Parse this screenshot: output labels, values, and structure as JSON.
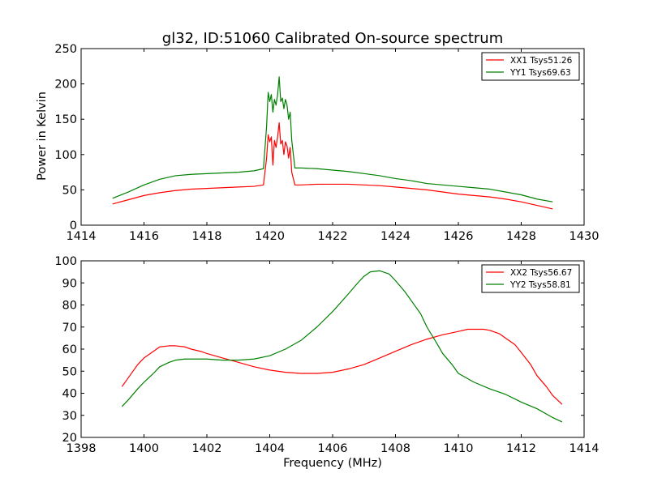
{
  "chart_data": [
    {
      "type": "line",
      "title": "gl32, ID:51060 Calibrated On-source spectrum",
      "xlabel": "",
      "ylabel": "Power in Kelvin",
      "xlim": [
        1414,
        1430
      ],
      "ylim": [
        0,
        250
      ],
      "xticks": [
        "1414",
        "1416",
        "1418",
        "1420",
        "1422",
        "1424",
        "1426",
        "1428",
        "1430"
      ],
      "yticks": [
        "0",
        "50",
        "100",
        "150",
        "200",
        "250"
      ],
      "grid": false,
      "legend_position": "top-right",
      "series": [
        {
          "name": "XX1 Tsys51.26",
          "color": "#ff0000",
          "x": [
            1415.0,
            1415.5,
            1416.0,
            1416.5,
            1417.0,
            1417.5,
            1418.0,
            1418.5,
            1419.0,
            1419.5,
            1419.8,
            1419.9,
            1419.95,
            1420.0,
            1420.05,
            1420.1,
            1420.15,
            1420.2,
            1420.25,
            1420.3,
            1420.35,
            1420.4,
            1420.45,
            1420.5,
            1420.55,
            1420.6,
            1420.65,
            1420.7,
            1420.8,
            1421.0,
            1421.5,
            1422.0,
            1422.5,
            1423.0,
            1423.5,
            1424.0,
            1424.5,
            1425.0,
            1425.5,
            1426.0,
            1426.5,
            1427.0,
            1427.5,
            1428.0,
            1428.5,
            1429.0
          ],
          "y": [
            30,
            36,
            42,
            46,
            49,
            51,
            52,
            53,
            54,
            55,
            57,
            95,
            128,
            118,
            125,
            85,
            120,
            110,
            125,
            145,
            115,
            120,
            100,
            118,
            112,
            95,
            110,
            75,
            57,
            57,
            58,
            58,
            58,
            57,
            56,
            54,
            52,
            50,
            47,
            44,
            42,
            40,
            37,
            33,
            28,
            23
          ]
        },
        {
          "name": "YY1 Tsys69.63",
          "color": "#008000",
          "x": [
            1415.0,
            1415.5,
            1416.0,
            1416.5,
            1417.0,
            1417.5,
            1418.0,
            1418.5,
            1419.0,
            1419.5,
            1419.8,
            1419.9,
            1419.95,
            1420.0,
            1420.05,
            1420.1,
            1420.15,
            1420.2,
            1420.25,
            1420.3,
            1420.35,
            1420.4,
            1420.45,
            1420.5,
            1420.55,
            1420.6,
            1420.65,
            1420.7,
            1420.8,
            1421.0,
            1421.5,
            1422.0,
            1422.5,
            1423.0,
            1423.5,
            1424.0,
            1424.5,
            1425.0,
            1425.5,
            1426.0,
            1426.5,
            1427.0,
            1427.5,
            1428.0,
            1428.5,
            1429.0
          ],
          "y": [
            38,
            47,
            57,
            65,
            70,
            72,
            73,
            74,
            75,
            77,
            80,
            140,
            188,
            175,
            185,
            160,
            178,
            170,
            185,
            210,
            175,
            180,
            165,
            178,
            170,
            150,
            160,
            120,
            81,
            81,
            80,
            78,
            76,
            73,
            70,
            66,
            63,
            59,
            57,
            55,
            53,
            51,
            47,
            43,
            37,
            33
          ]
        }
      ]
    },
    {
      "type": "line",
      "title": "",
      "xlabel": "Frequency (MHz)",
      "ylabel": "",
      "xlim": [
        1398,
        1414
      ],
      "ylim": [
        20,
        100
      ],
      "xticks": [
        "1398",
        "1400",
        "1402",
        "1404",
        "1406",
        "1408",
        "1410",
        "1412",
        "1414"
      ],
      "yticks": [
        "20",
        "30",
        "40",
        "50",
        "60",
        "70",
        "80",
        "90",
        "100"
      ],
      "grid": false,
      "legend_position": "top-right",
      "series": [
        {
          "name": "XX2 Tsys56.67",
          "color": "#ff0000",
          "x": [
            1399.3,
            1399.5,
            1399.8,
            1400.0,
            1400.3,
            1400.5,
            1400.8,
            1401.0,
            1401.3,
            1401.5,
            1401.8,
            1402.0,
            1402.5,
            1403.0,
            1403.5,
            1404.0,
            1404.5,
            1405.0,
            1405.5,
            1406.0,
            1406.5,
            1407.0,
            1407.5,
            1408.0,
            1408.5,
            1409.0,
            1409.5,
            1410.0,
            1410.3,
            1410.5,
            1410.8,
            1411.0,
            1411.3,
            1411.5,
            1411.8,
            1412.0,
            1412.3,
            1412.5,
            1412.8,
            1413.0,
            1413.3
          ],
          "y": [
            43,
            47,
            53,
            56,
            59,
            61,
            61.5,
            61.5,
            61,
            60,
            59,
            58,
            56,
            54,
            52,
            50.5,
            49.5,
            49,
            49,
            49.5,
            51,
            53,
            56,
            59,
            62,
            64.5,
            66.5,
            68,
            69,
            69,
            69,
            68.5,
            67,
            65,
            62,
            58.5,
            53,
            48,
            43,
            39,
            35
          ]
        },
        {
          "name": "YY2 Tsys58.81",
          "color": "#008000",
          "x": [
            1399.3,
            1399.5,
            1399.8,
            1400.0,
            1400.3,
            1400.5,
            1400.8,
            1401.0,
            1401.3,
            1401.5,
            1402.0,
            1402.5,
            1403.0,
            1403.5,
            1404.0,
            1404.5,
            1405.0,
            1405.5,
            1406.0,
            1406.5,
            1406.8,
            1407.0,
            1407.2,
            1407.5,
            1407.8,
            1408.0,
            1408.3,
            1408.5,
            1408.8,
            1409.0,
            1409.3,
            1409.5,
            1409.8,
            1410.0,
            1410.5,
            1411.0,
            1411.5,
            1412.0,
            1412.5,
            1413.0,
            1413.3
          ],
          "y": [
            34,
            37,
            42,
            45,
            49,
            52,
            54,
            55,
            55.5,
            55.5,
            55.5,
            55,
            55,
            55.5,
            57,
            60,
            64,
            70,
            77,
            85,
            90,
            93,
            95,
            95.5,
            94,
            91,
            86,
            82,
            76,
            70,
            63,
            58,
            53,
            49,
            45,
            42,
            39.5,
            36,
            33,
            29,
            27
          ]
        }
      ]
    }
  ]
}
